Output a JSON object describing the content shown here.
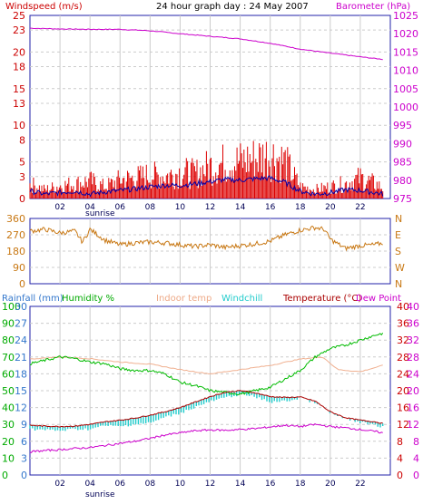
{
  "colors": {
    "wind": "#cc0000",
    "gust": "#dd0000",
    "avgwind": "#0000aa",
    "baro": "#cc00cc",
    "winddir": "#c87814",
    "rain": "#3377cc",
    "humidity": "#00bb00",
    "indoor": "#f0b090",
    "windchill": "#22cccc",
    "temp": "#aa0000",
    "dew": "#cc00cc",
    "grid": "#cccccc",
    "frame": "#2222aa"
  },
  "header": {
    "title": "24 hour graph day : 24 May 2007",
    "wind_label": "Windspeed (m/s)",
    "baro_label": "Barometer (hPa)"
  },
  "legend": {
    "rain": "Rainfall (mm)",
    "humidity": "Humidity %",
    "indoor": "Indoor temp",
    "windchill": "Windchill",
    "temp": "Temperature (°C)",
    "dew": "Dew Point"
  },
  "sunrise": "sunrise",
  "chart_data": [
    {
      "type": "line",
      "title": "24 hour graph day : 24 May 2007",
      "xlabel": "",
      "x_ticks": [
        "02",
        "04",
        "06",
        "08",
        "10",
        "12",
        "14",
        "16",
        "18",
        "20",
        "22"
      ],
      "y_left_label": "Windspeed (m/s)",
      "y_left_ticks": [
        0,
        3,
        5,
        8,
        10,
        13,
        15,
        18,
        20,
        23,
        25
      ],
      "y_left_range": [
        0,
        25
      ],
      "y_right_label": "Barometer (hPa)",
      "y_right_ticks": [
        975,
        980,
        985,
        990,
        995,
        1000,
        1005,
        1010,
        1015,
        1020,
        1025
      ],
      "y_right_range": [
        975,
        1025
      ],
      "series": [
        {
          "name": "Barometer (hPa)",
          "axis": "right",
          "x": [
            0,
            2,
            4,
            6,
            8,
            10,
            12,
            14,
            16,
            18,
            20,
            22,
            23.5
          ],
          "y": [
            1021.5,
            1021.3,
            1021.2,
            1021.2,
            1020.8,
            1020.0,
            1019.3,
            1018.6,
            1017.4,
            1015.8,
            1014.7,
            1013.7,
            1013.0
          ]
        },
        {
          "name": "Windspeed (m/s)",
          "axis": "left",
          "x": [
            0,
            1,
            2,
            3,
            4,
            5,
            6,
            7,
            8,
            9,
            10,
            11,
            12,
            13,
            14,
            15,
            16,
            17,
            18,
            19,
            20,
            21,
            22,
            23,
            23.5
          ],
          "y": [
            1.0,
            0.6,
            0.8,
            1.0,
            0.6,
            0.9,
            1.1,
            1.3,
            1.6,
            1.8,
            1.8,
            2.0,
            2.3,
            2.6,
            2.5,
            2.7,
            2.8,
            2.2,
            1.0,
            0.6,
            0.8,
            1.2,
            1.1,
            0.8,
            0.6
          ]
        },
        {
          "name": "Gust (m/s)",
          "axis": "left",
          "x": [
            0,
            1,
            2,
            3,
            4,
            5,
            6,
            7,
            8,
            9,
            10,
            11,
            12,
            13,
            14,
            15,
            16,
            17,
            18,
            19,
            20,
            21,
            22,
            23,
            23.5
          ],
          "y": [
            2.5,
            1.5,
            2.2,
            2.5,
            3.0,
            2.0,
            3.2,
            3.5,
            4.0,
            3.8,
            4.5,
            4.2,
            5.5,
            6.0,
            6.3,
            6.8,
            7.5,
            6.2,
            2.0,
            1.5,
            2.0,
            2.5,
            3.5,
            2.5,
            1.8
          ]
        }
      ]
    },
    {
      "type": "line",
      "y_left_ticks": [
        0,
        90,
        180,
        270,
        360
      ],
      "y_left_range": [
        0,
        360
      ],
      "y_right_ticks": [
        "N",
        "W",
        "S",
        "E",
        "N"
      ],
      "series": [
        {
          "name": "Wind direction",
          "x": [
            0,
            1,
            2,
            3,
            3.5,
            4,
            5,
            6,
            7,
            8,
            9,
            10,
            11,
            12,
            13,
            14,
            15,
            16,
            17,
            18,
            19,
            19.6,
            20,
            21,
            22,
            23,
            23.5
          ],
          "y": [
            290,
            300,
            280,
            290,
            230,
            300,
            240,
            215,
            225,
            230,
            225,
            215,
            205,
            215,
            200,
            210,
            220,
            235,
            270,
            295,
            310,
            300,
            245,
            195,
            210,
            215,
            225
          ]
        }
      ]
    },
    {
      "type": "line",
      "x_ticks": [
        "02",
        "04",
        "06",
        "08",
        "10",
        "12",
        "14",
        "16",
        "18",
        "20",
        "22"
      ],
      "y_left_ticks_rain": [
        0,
        3,
        6,
        9,
        12,
        15,
        18,
        21,
        24,
        27,
        30
      ],
      "y_left_ticks_humidity": [
        0,
        10,
        20,
        30,
        40,
        50,
        60,
        70,
        80,
        90,
        100
      ],
      "y_right_ticks_temp": [
        0,
        4,
        8,
        12,
        16,
        20,
        24,
        28,
        32,
        36,
        40
      ],
      "y_right_ticks_temp2": [
        0,
        4,
        8,
        12,
        16,
        20,
        24,
        28,
        32,
        36,
        40
      ],
      "temp_range": [
        0,
        40
      ],
      "humidity_range": [
        0,
        100
      ],
      "series": [
        {
          "name": "Humidity %",
          "x": [
            0,
            1,
            2,
            3,
            4,
            5,
            6,
            7,
            8,
            9,
            10,
            11,
            12,
            13,
            14,
            15,
            16,
            17,
            18,
            19,
            20,
            21,
            22,
            23,
            23.5
          ],
          "y": [
            66,
            68,
            70,
            69,
            67,
            66,
            63,
            62,
            62,
            60,
            55,
            53,
            50,
            49,
            48,
            50,
            52,
            57,
            62,
            70,
            75,
            77,
            80,
            83,
            84
          ]
        },
        {
          "name": "Indoor temp",
          "x": [
            0,
            2,
            4,
            6,
            8,
            10,
            12,
            14,
            16,
            18,
            19.5,
            20.5,
            22,
            23.5
          ],
          "y": [
            27.5,
            28.0,
            27.6,
            26.8,
            26.3,
            25.0,
            24.0,
            25.0,
            26.0,
            27.5,
            28.0,
            25.0,
            24.5,
            26.0
          ]
        },
        {
          "name": "Temperature (°C)",
          "x": [
            0,
            1,
            2,
            3,
            4,
            5,
            6,
            7,
            8,
            9,
            10,
            11,
            12,
            13,
            14,
            15,
            16,
            17,
            18,
            19,
            20,
            21,
            22,
            23,
            23.5
          ],
          "y": [
            11.8,
            11.6,
            11.5,
            11.6,
            12.0,
            12.6,
            13.0,
            13.5,
            14.2,
            15.0,
            16.0,
            17.3,
            18.6,
            19.6,
            20.0,
            19.5,
            18.6,
            18.4,
            18.5,
            17.5,
            15.0,
            13.6,
            13.0,
            12.6,
            12.2
          ]
        },
        {
          "name": "Windchill",
          "x": [
            0,
            1,
            2,
            3,
            4,
            5,
            6,
            7,
            8,
            9,
            10,
            11,
            12,
            13,
            14,
            15,
            16,
            17,
            18,
            19,
            20,
            21,
            22,
            23,
            23.5
          ],
          "y": [
            11.2,
            11.0,
            10.8,
            11.2,
            11.2,
            12.0,
            11.8,
            12.4,
            12.6,
            14.0,
            15.0,
            16.4,
            17.7,
            18.6,
            19.5,
            18.8,
            17.6,
            17.8,
            18.5,
            17.5,
            15.0,
            13.5,
            12.8,
            12.0,
            11.8
          ]
        },
        {
          "name": "Dew Point",
          "x": [
            0,
            1,
            2,
            3,
            4,
            5,
            6,
            7,
            8,
            9,
            10,
            11,
            12,
            13,
            14,
            15,
            16,
            17,
            18,
            19,
            20,
            21,
            22,
            23,
            23.5
          ],
          "y": [
            5.5,
            5.8,
            6.0,
            6.3,
            6.5,
            7.0,
            7.5,
            8.0,
            8.7,
            9.5,
            10.0,
            10.5,
            10.7,
            10.6,
            10.8,
            11.0,
            11.4,
            11.8,
            11.5,
            12.0,
            11.5,
            11.2,
            10.8,
            10.3,
            10.0
          ]
        }
      ]
    }
  ]
}
